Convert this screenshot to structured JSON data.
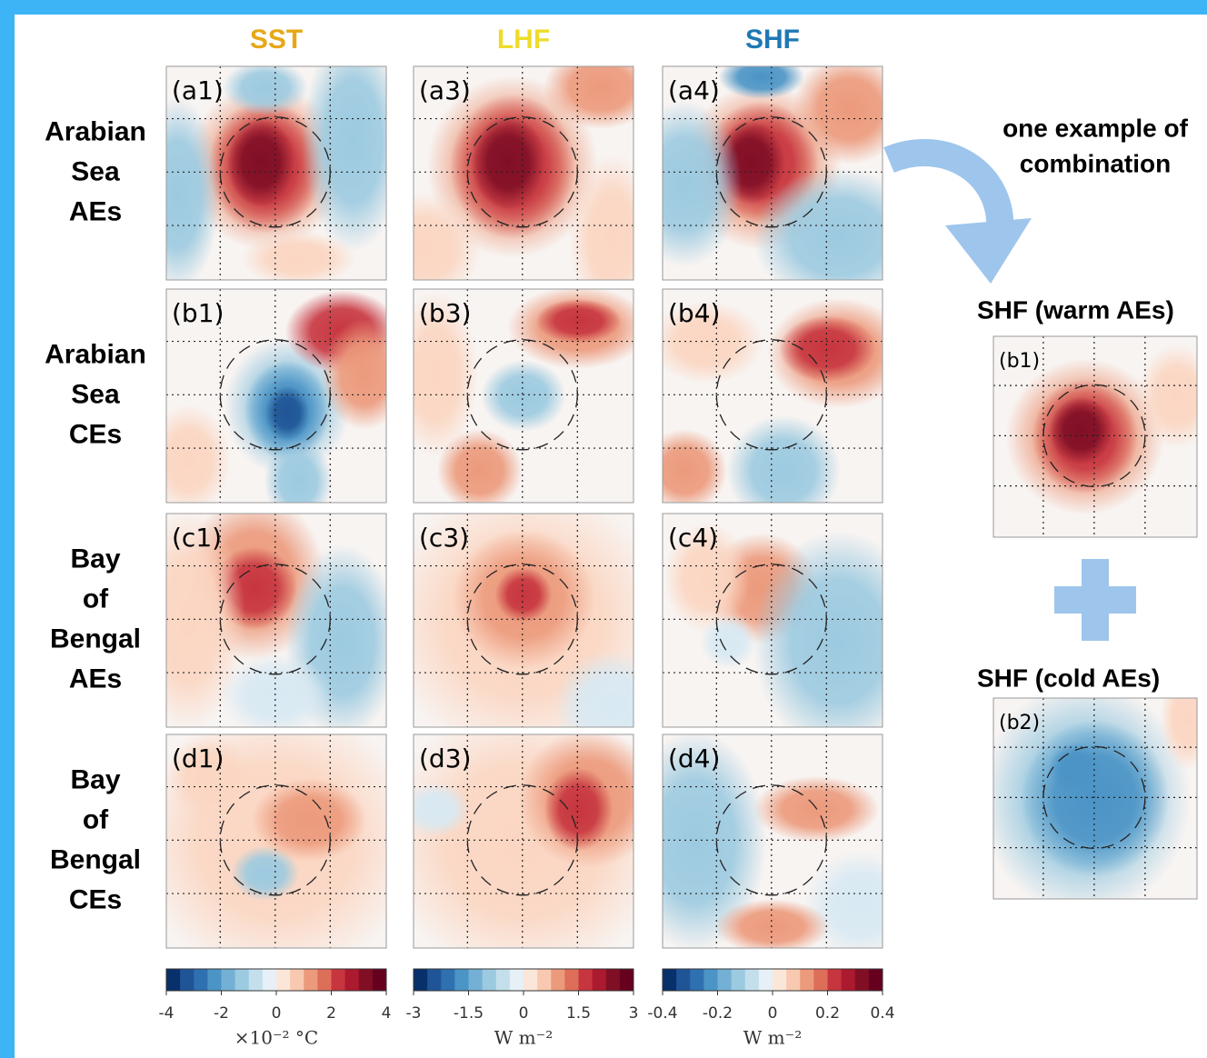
{
  "columns": [
    "SST",
    "LHF",
    "SHF"
  ],
  "rows": [
    [
      "Arabian",
      "Sea",
      "AEs"
    ],
    [
      "Arabian",
      "Sea",
      "CEs"
    ],
    [
      "Bay",
      "of",
      "Bengal",
      "AEs"
    ],
    [
      "Bay",
      "of",
      "Bengal",
      "CEs"
    ]
  ],
  "panels": [
    [
      "(a1)",
      "(a3)",
      "(a4)"
    ],
    [
      "(b1)",
      "(b3)",
      "(b4)"
    ],
    [
      "(c1)",
      "(c3)",
      "(c4)"
    ],
    [
      "(d1)",
      "(d3)",
      "(d4)"
    ]
  ],
  "colorbars": [
    {
      "lim": [
        -4,
        4
      ],
      "ticks": [
        -4,
        -2,
        0,
        2,
        4
      ],
      "units": "×10⁻² °C"
    },
    {
      "lim": [
        -3,
        3
      ],
      "ticks": [
        -3,
        -1.5,
        0,
        1.5,
        3
      ],
      "units": "W m⁻²"
    },
    {
      "lim": [
        -0.4,
        0.4
      ],
      "ticks": [
        -0.4,
        -0.2,
        0,
        0.2,
        0.4
      ],
      "units": "W m⁻²"
    }
  ],
  "annotation": [
    "one example of",
    "combination"
  ],
  "insets": [
    {
      "title": "SHF (warm AEs)",
      "label": "(b1)"
    },
    {
      "title": "SHF (cold AEs)",
      "label": "(b2)"
    }
  ]
}
